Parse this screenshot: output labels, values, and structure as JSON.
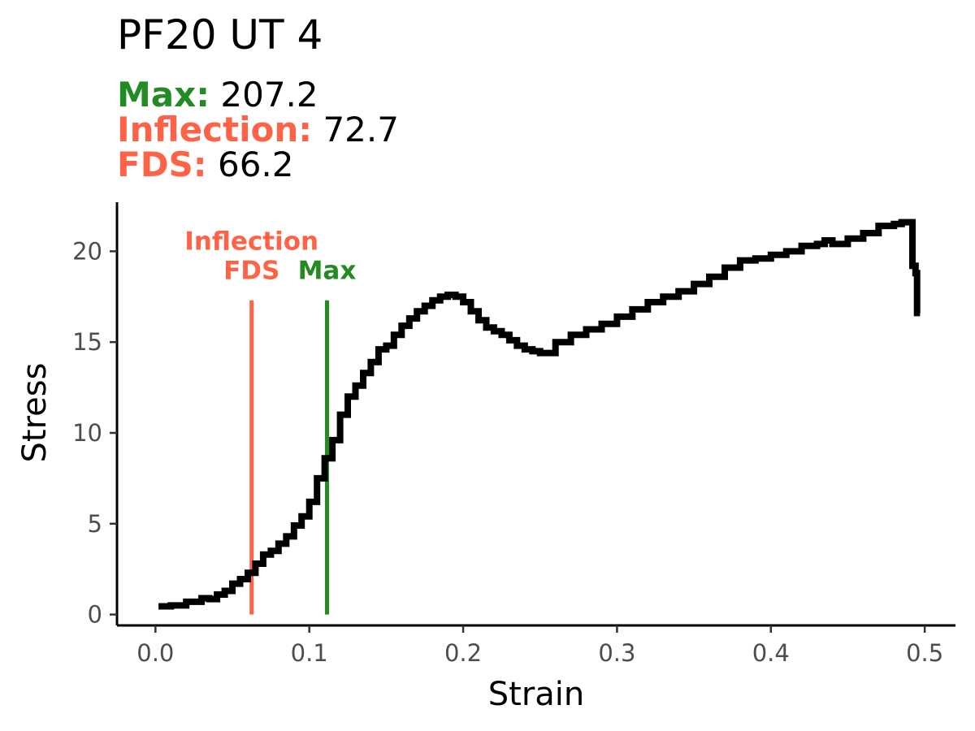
{
  "title": "PF20 UT 4",
  "stats": [
    {
      "label": "Max:",
      "value": "207.2",
      "color": "#228B22"
    },
    {
      "label": "Inflection:",
      "value": "72.7",
      "color": "#FF6347"
    },
    {
      "label": "FDS:",
      "value": "66.2",
      "color": "#FF6347"
    }
  ],
  "chart_data": {
    "type": "line",
    "title": "PF20 UT 4",
    "xlabel": "Strain",
    "ylabel": "Stress",
    "xlim": [
      -0.025,
      0.52
    ],
    "ylim": [
      -0.6,
      22.7
    ],
    "xticks": [
      0.0,
      0.1,
      0.2,
      0.3,
      0.4,
      0.5
    ],
    "xtick_labels": [
      "0.0",
      "0.1",
      "0.2",
      "0.3",
      "0.4",
      "0.5"
    ],
    "yticks": [
      0,
      5,
      10,
      15,
      20
    ],
    "ytick_labels": [
      "0",
      "5",
      "10",
      "15",
      "20"
    ],
    "grid": false,
    "series": [
      {
        "color": "#000000",
        "x": [
          0.002,
          0.01,
          0.02,
          0.03,
          0.035,
          0.04,
          0.045,
          0.05,
          0.055,
          0.06,
          0.065,
          0.07,
          0.075,
          0.08,
          0.085,
          0.09,
          0.095,
          0.1,
          0.105,
          0.11,
          0.115,
          0.12,
          0.125,
          0.13,
          0.135,
          0.14,
          0.145,
          0.15,
          0.155,
          0.16,
          0.165,
          0.17,
          0.175,
          0.18,
          0.185,
          0.19,
          0.195,
          0.2,
          0.205,
          0.21,
          0.215,
          0.22,
          0.225,
          0.23,
          0.235,
          0.24,
          0.245,
          0.25,
          0.26,
          0.27,
          0.28,
          0.29,
          0.3,
          0.31,
          0.32,
          0.33,
          0.34,
          0.35,
          0.36,
          0.37,
          0.38,
          0.39,
          0.4,
          0.41,
          0.42,
          0.43,
          0.435,
          0.44,
          0.45,
          0.46,
          0.47,
          0.48,
          0.485,
          0.49,
          0.492,
          0.494,
          0.495,
          0.497
        ],
        "y": [
          0.45,
          0.5,
          0.7,
          0.9,
          0.85,
          1.1,
          1.3,
          1.7,
          1.95,
          2.3,
          2.8,
          3.3,
          3.5,
          3.9,
          4.3,
          4.9,
          5.4,
          6.2,
          7.5,
          8.6,
          9.6,
          11.0,
          12.0,
          12.6,
          13.3,
          13.9,
          14.6,
          14.8,
          15.4,
          15.9,
          16.3,
          16.7,
          17.0,
          17.3,
          17.5,
          17.6,
          17.5,
          17.2,
          16.7,
          16.2,
          15.8,
          15.6,
          15.4,
          15.1,
          14.8,
          14.6,
          14.5,
          14.4,
          15.0,
          15.4,
          15.7,
          16.0,
          16.4,
          16.8,
          17.2,
          17.5,
          17.8,
          18.2,
          18.6,
          19.1,
          19.5,
          19.6,
          19.8,
          20.0,
          20.3,
          20.4,
          20.6,
          20.4,
          20.7,
          21.0,
          21.4,
          21.5,
          21.6,
          21.6,
          19.2,
          18.8,
          16.6,
          16.6
        ]
      }
    ],
    "vlines": [
      {
        "x": 0.0625,
        "label": "Inflection\nFDS",
        "color": "#FF6347",
        "y_top": 17.3
      },
      {
        "x": 0.1115,
        "label": "Max",
        "color": "#228B22",
        "y_top": 17.3
      }
    ]
  }
}
